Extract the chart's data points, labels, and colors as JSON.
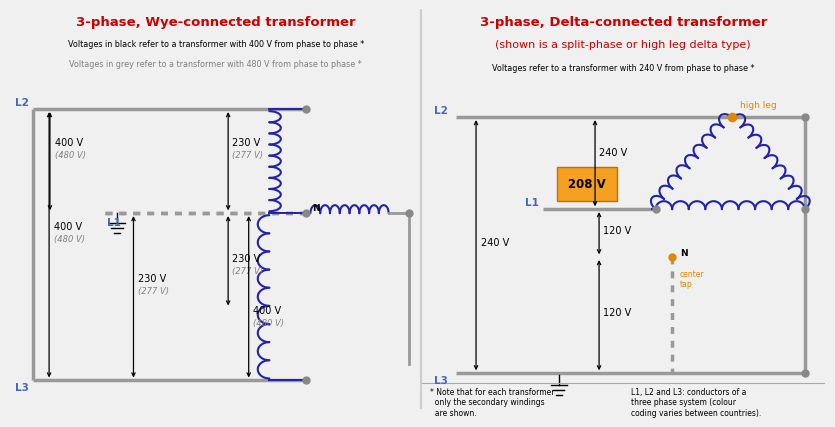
{
  "title_wye": "3-phase, Wye-connected transformer",
  "title_delta": "3-phase, Delta-connected transformer",
  "subtitle_delta": "(shown is a split-phase or high leg delta type)",
  "desc_wye_black": "Voltages in black refer to a transformer with 400 V from phase to phase *",
  "desc_wye_grey": "Voltages in grey refer to a transformer with 480 V from phase to phase *",
  "desc_delta": "Voltages refer to a transformer with 240 V from phase to phase *",
  "title_color": "#cc0000",
  "line_gray": "#999999",
  "line_black": "#000000",
  "coil_color": "#2222aa",
  "dot_gray": "#888888",
  "orange": "#e08800",
  "highlight_fill": "#f5a020",
  "bg": "#f0f0f0",
  "footnote_l": "* Note that for each transformer\n  only the secondary windings\n  are shown.",
  "footnote_r": "L1, L2 and L3: conductors of a\nthree phase system (colour\ncoding varies between countries)."
}
